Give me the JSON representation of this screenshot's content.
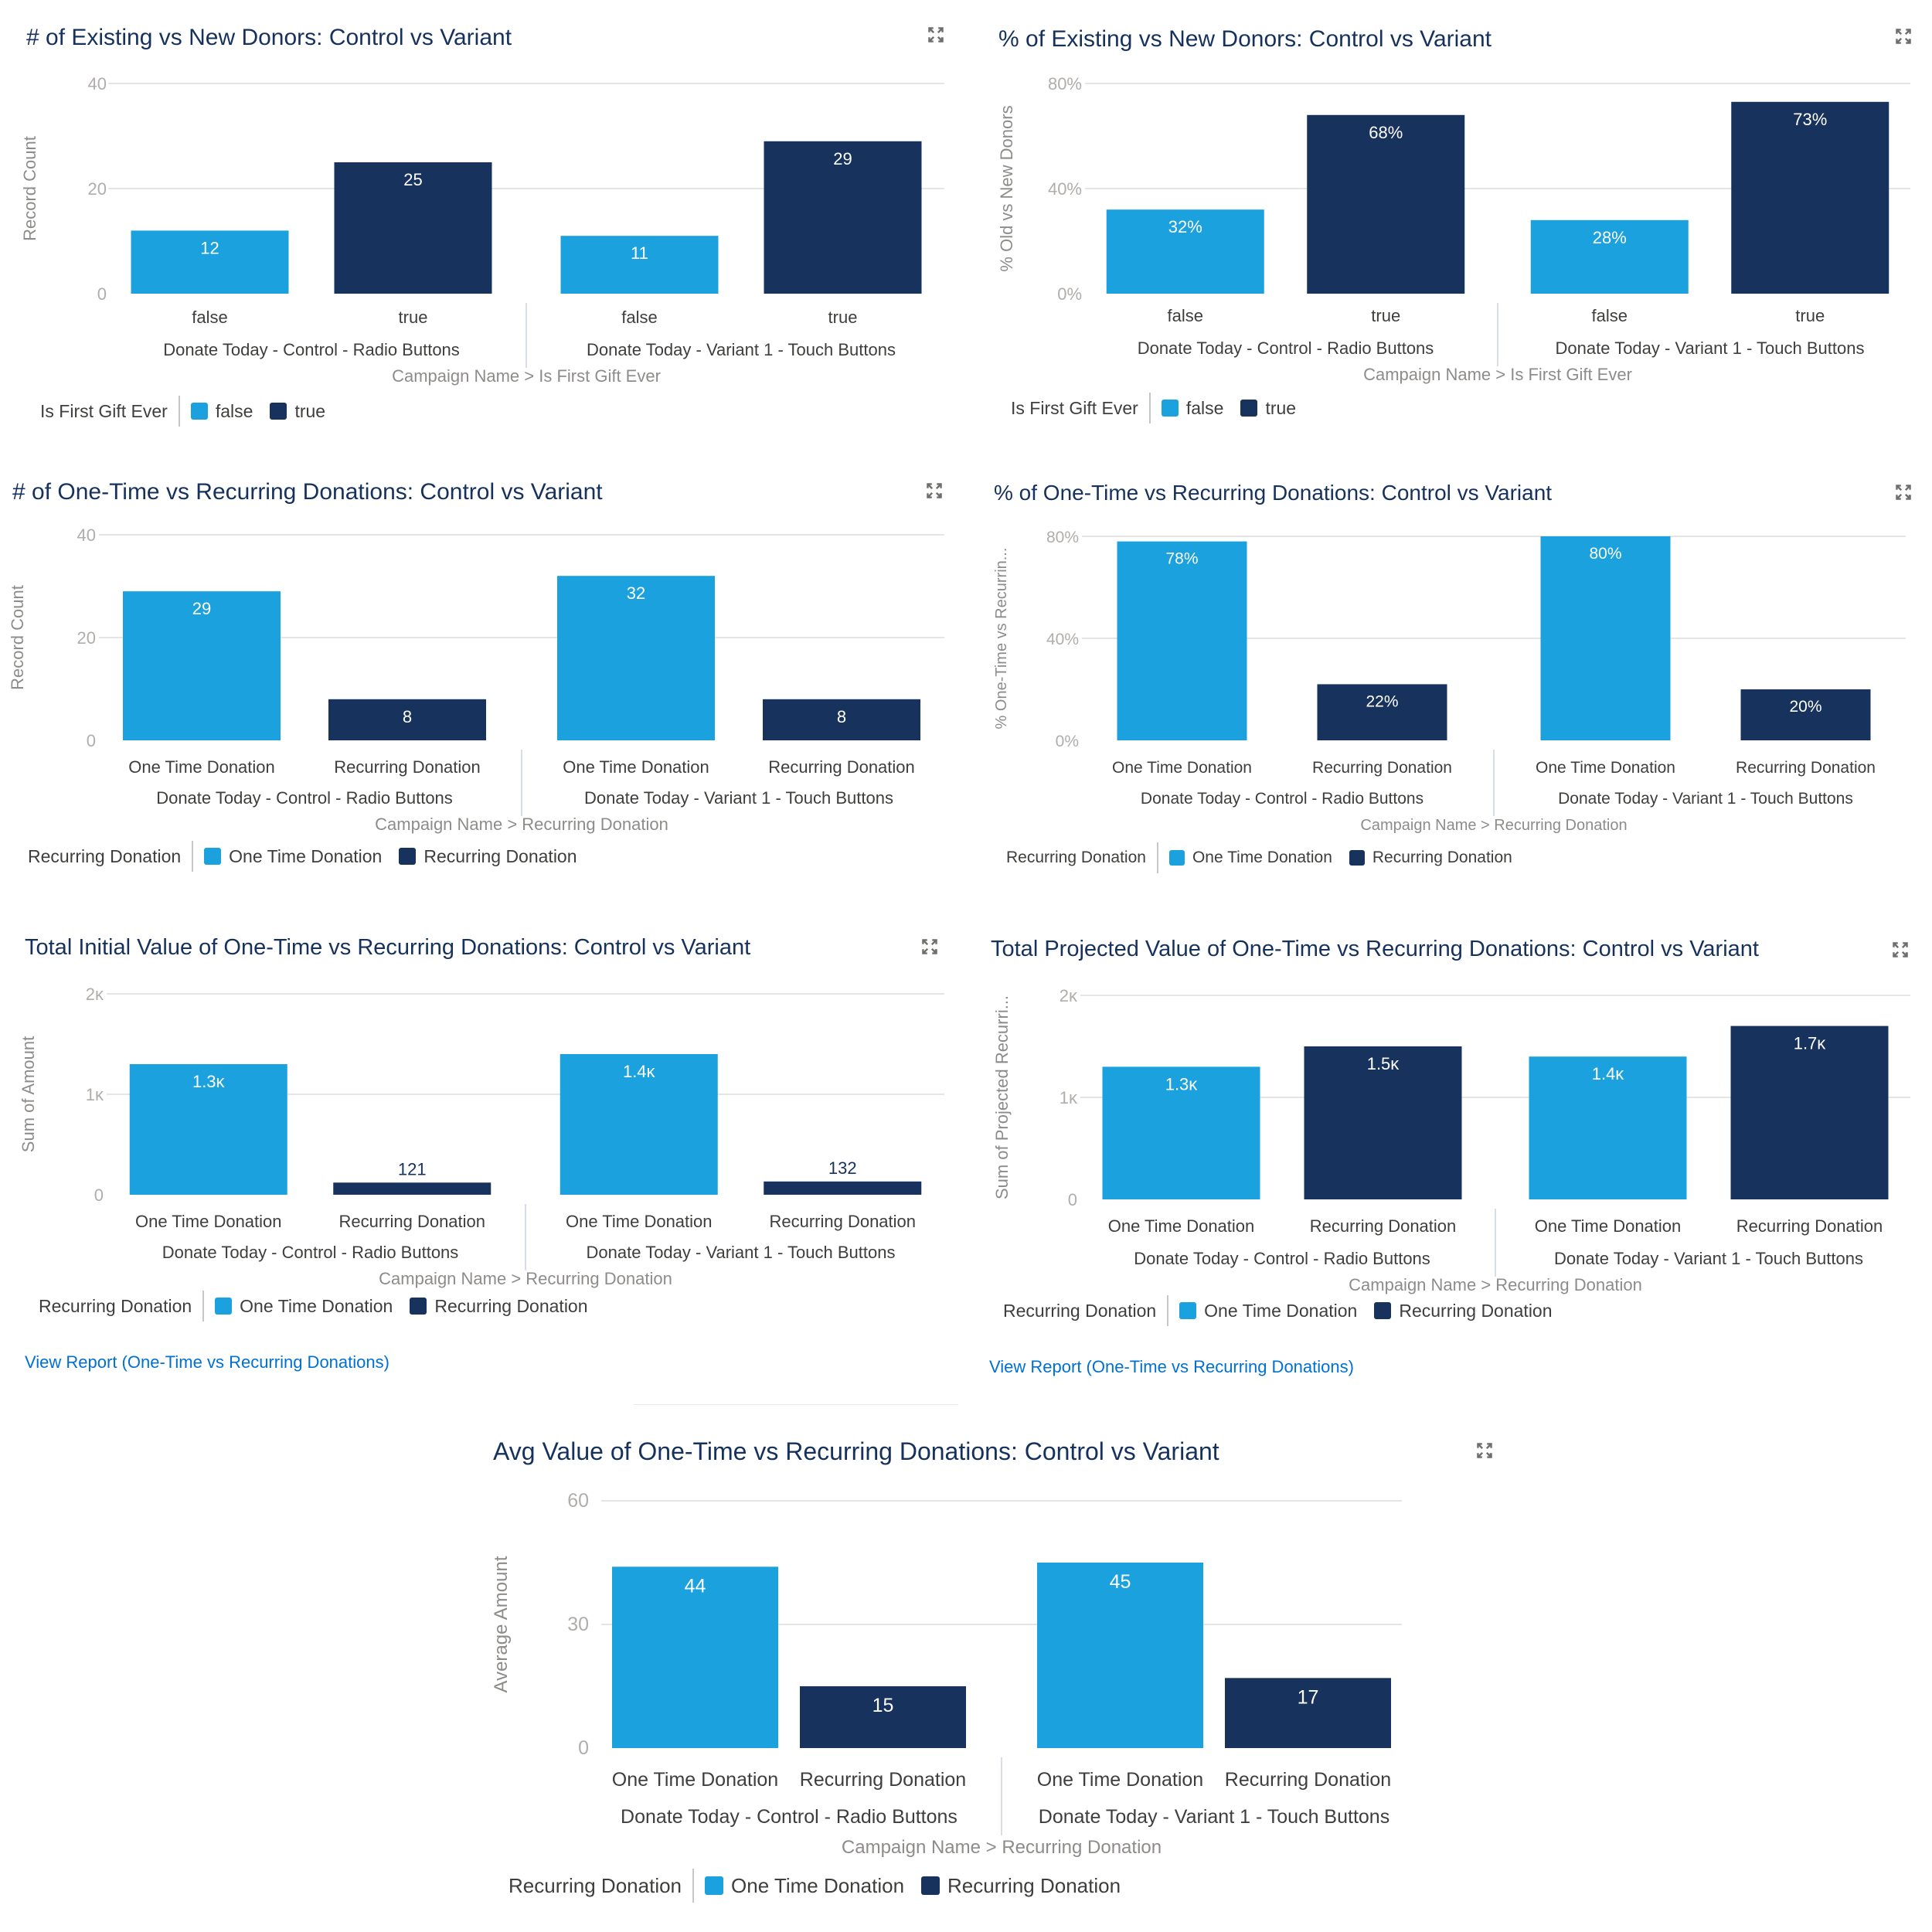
{
  "colors": {
    "false_one_time": "#1aa1de",
    "true_recurring": "#17325c",
    "title": "#16325c",
    "link": "#0070d2"
  },
  "icons": {
    "expand": "expand-icon"
  },
  "charts": [
    {
      "id": "existing-vs-new-count",
      "title": "# of Existing vs New Donors: Control vs Variant",
      "legend_title": "Is First Gift Ever",
      "legend_items": [
        "false",
        "true"
      ],
      "xlabel": "Campaign Name > Is First Gift Ever",
      "ylabel": "Record Count",
      "link": ""
    },
    {
      "id": "existing-vs-new-pct",
      "title": "% of Existing vs New Donors: Control vs Variant",
      "legend_title": "Is First Gift Ever",
      "legend_items": [
        "false",
        "true"
      ],
      "xlabel": "Campaign Name > Is First Gift Ever",
      "ylabel": "% Old vs New Donors",
      "link": ""
    },
    {
      "id": "onetime-vs-recurring-count",
      "title": "# of One-Time vs Recurring Donations: Control vs Variant",
      "legend_title": "Recurring Donation",
      "legend_items": [
        "One Time Donation",
        "Recurring Donation"
      ],
      "xlabel": "Campaign Name > Recurring Donation",
      "ylabel": "Record Count",
      "link": ""
    },
    {
      "id": "onetime-vs-recurring-pct",
      "title": "% of One-Time vs Recurring Donations: Control vs Variant",
      "legend_title": "Recurring Donation",
      "legend_items": [
        "One Time Donation",
        "Recurring Donation"
      ],
      "xlabel": "Campaign Name > Recurring Donation",
      "ylabel": "% One-Time vs Recurrin...",
      "link": ""
    },
    {
      "id": "total-initial-value",
      "title": "Total Initial Value of One-Time vs Recurring Donations: Control vs Variant",
      "legend_title": "Recurring Donation",
      "legend_items": [
        "One Time Donation",
        "Recurring Donation"
      ],
      "xlabel": "Campaign Name > Recurring Donation",
      "ylabel": "Sum of Amount",
      "link": "View Report (One-Time vs Recurring Donations)"
    },
    {
      "id": "total-projected-value",
      "title": "Total Projected Value of One-Time vs Recurring Donations: Control vs Variant",
      "legend_title": "Recurring Donation",
      "legend_items": [
        "One Time Donation",
        "Recurring Donation"
      ],
      "xlabel": "Campaign Name > Recurring Donation",
      "ylabel": "Sum of Projected Recurri...",
      "link": "View Report (One-Time vs Recurring Donations)"
    },
    {
      "id": "avg-value",
      "title": "Avg Value of One-Time vs Recurring Donations: Control vs Variant",
      "legend_title": "Recurring Donation",
      "legend_items": [
        "One Time Donation",
        "Recurring Donation"
      ],
      "xlabel": "Campaign Name > Recurring Donation",
      "ylabel": "Average Amount",
      "link": ""
    }
  ],
  "chart_data": [
    {
      "type": "bar",
      "title": "# of Existing vs New Donors: Control vs Variant",
      "groups": [
        "Donate Today - Control - Radio Buttons",
        "Donate Today - Variant 1 - Touch Buttons"
      ],
      "categories": [
        "false",
        "true"
      ],
      "values": [
        [
          12,
          25
        ],
        [
          11,
          29
        ]
      ],
      "value_labels": [
        [
          "12",
          "25"
        ],
        [
          "11",
          "29"
        ]
      ],
      "yticks": [
        "0",
        "20",
        "40"
      ],
      "ylim": [
        0,
        40
      ],
      "xlabel": "Campaign Name > Is First Gift Ever",
      "ylabel": "Record Count",
      "grid": true,
      "legend": "bottom-left"
    },
    {
      "type": "bar",
      "title": "% of Existing vs New Donors: Control vs Variant",
      "groups": [
        "Donate Today - Control - Radio Buttons",
        "Donate Today - Variant 1 - Touch Buttons"
      ],
      "categories": [
        "false",
        "true"
      ],
      "values": [
        [
          32,
          68
        ],
        [
          28,
          73
        ]
      ],
      "value_labels": [
        [
          "32%",
          "68%"
        ],
        [
          "28%",
          "73%"
        ]
      ],
      "yticks": [
        "0%",
        "40%",
        "80%"
      ],
      "ylim": [
        0,
        80
      ],
      "xlabel": "Campaign Name > Is First Gift Ever",
      "ylabel": "% Old vs New Donors",
      "grid": true,
      "legend": "bottom-left"
    },
    {
      "type": "bar",
      "title": "# of One-Time vs Recurring Donations: Control vs Variant",
      "groups": [
        "Donate Today - Control - Radio Buttons",
        "Donate Today - Variant 1 - Touch Buttons"
      ],
      "categories": [
        "One Time Donation",
        "Recurring Donation"
      ],
      "values": [
        [
          29,
          8
        ],
        [
          32,
          8
        ]
      ],
      "value_labels": [
        [
          "29",
          "8"
        ],
        [
          "32",
          "8"
        ]
      ],
      "yticks": [
        "0",
        "20",
        "40"
      ],
      "ylim": [
        0,
        40
      ],
      "xlabel": "Campaign Name > Recurring Donation",
      "ylabel": "Record Count",
      "grid": true,
      "legend": "bottom-left"
    },
    {
      "type": "bar",
      "title": "% of One-Time vs Recurring Donations: Control vs Variant",
      "groups": [
        "Donate Today - Control - Radio Buttons",
        "Donate Today - Variant 1 - Touch Buttons"
      ],
      "categories": [
        "One Time Donation",
        "Recurring Donation"
      ],
      "values": [
        [
          78,
          22
        ],
        [
          80,
          20
        ]
      ],
      "value_labels": [
        [
          "78%",
          "22%"
        ],
        [
          "80%",
          "20%"
        ]
      ],
      "yticks": [
        "0%",
        "40%",
        "80%"
      ],
      "ylim": [
        0,
        80
      ],
      "xlabel": "Campaign Name > Recurring Donation",
      "ylabel": "% One-Time vs Recurrin...",
      "grid": true,
      "legend": "bottom-left"
    },
    {
      "type": "bar",
      "title": "Total Initial Value of One-Time vs Recurring Donations: Control vs Variant",
      "groups": [
        "Donate Today - Control - Radio Buttons",
        "Donate Today - Variant 1 - Touch Buttons"
      ],
      "categories": [
        "One Time Donation",
        "Recurring Donation"
      ],
      "values": [
        [
          1300,
          121
        ],
        [
          1400,
          132
        ]
      ],
      "value_labels": [
        [
          "1.3ĸ",
          "121"
        ],
        [
          "1.4ĸ",
          "132"
        ]
      ],
      "yticks": [
        "0",
        "1ĸ",
        "2ĸ"
      ],
      "ylim": [
        0,
        2000
      ],
      "xlabel": "Campaign Name > Recurring Donation",
      "ylabel": "Sum of Amount",
      "grid": true,
      "legend": "bottom-left"
    },
    {
      "type": "bar",
      "title": "Total Projected Value of One-Time vs Recurring Donations: Control vs Variant",
      "groups": [
        "Donate Today - Control - Radio Buttons",
        "Donate Today - Variant 1 - Touch Buttons"
      ],
      "categories": [
        "One Time Donation",
        "Recurring Donation"
      ],
      "values": [
        [
          1300,
          1500
        ],
        [
          1400,
          1700
        ]
      ],
      "value_labels": [
        [
          "1.3ĸ",
          "1.5ĸ"
        ],
        [
          "1.4ĸ",
          "1.7ĸ"
        ]
      ],
      "yticks": [
        "0",
        "1ĸ",
        "2ĸ"
      ],
      "ylim": [
        0,
        2000
      ],
      "xlabel": "Campaign Name > Recurring Donation",
      "ylabel": "Sum of Projected Recurri...",
      "grid": true,
      "legend": "bottom-left"
    },
    {
      "type": "bar",
      "title": "Avg Value of One-Time vs Recurring Donations: Control vs Variant",
      "groups": [
        "Donate Today - Control - Radio Buttons",
        "Donate Today - Variant 1 - Touch Buttons"
      ],
      "categories": [
        "One Time Donation",
        "Recurring Donation"
      ],
      "values": [
        [
          44,
          15
        ],
        [
          45,
          17
        ]
      ],
      "value_labels": [
        [
          "44",
          "15"
        ],
        [
          "45",
          "17"
        ]
      ],
      "yticks": [
        "0",
        "30",
        "60"
      ],
      "ylim": [
        0,
        60
      ],
      "xlabel": "Campaign Name > Recurring Donation",
      "ylabel": "Average Amount",
      "grid": true,
      "legend": "bottom-left"
    }
  ]
}
